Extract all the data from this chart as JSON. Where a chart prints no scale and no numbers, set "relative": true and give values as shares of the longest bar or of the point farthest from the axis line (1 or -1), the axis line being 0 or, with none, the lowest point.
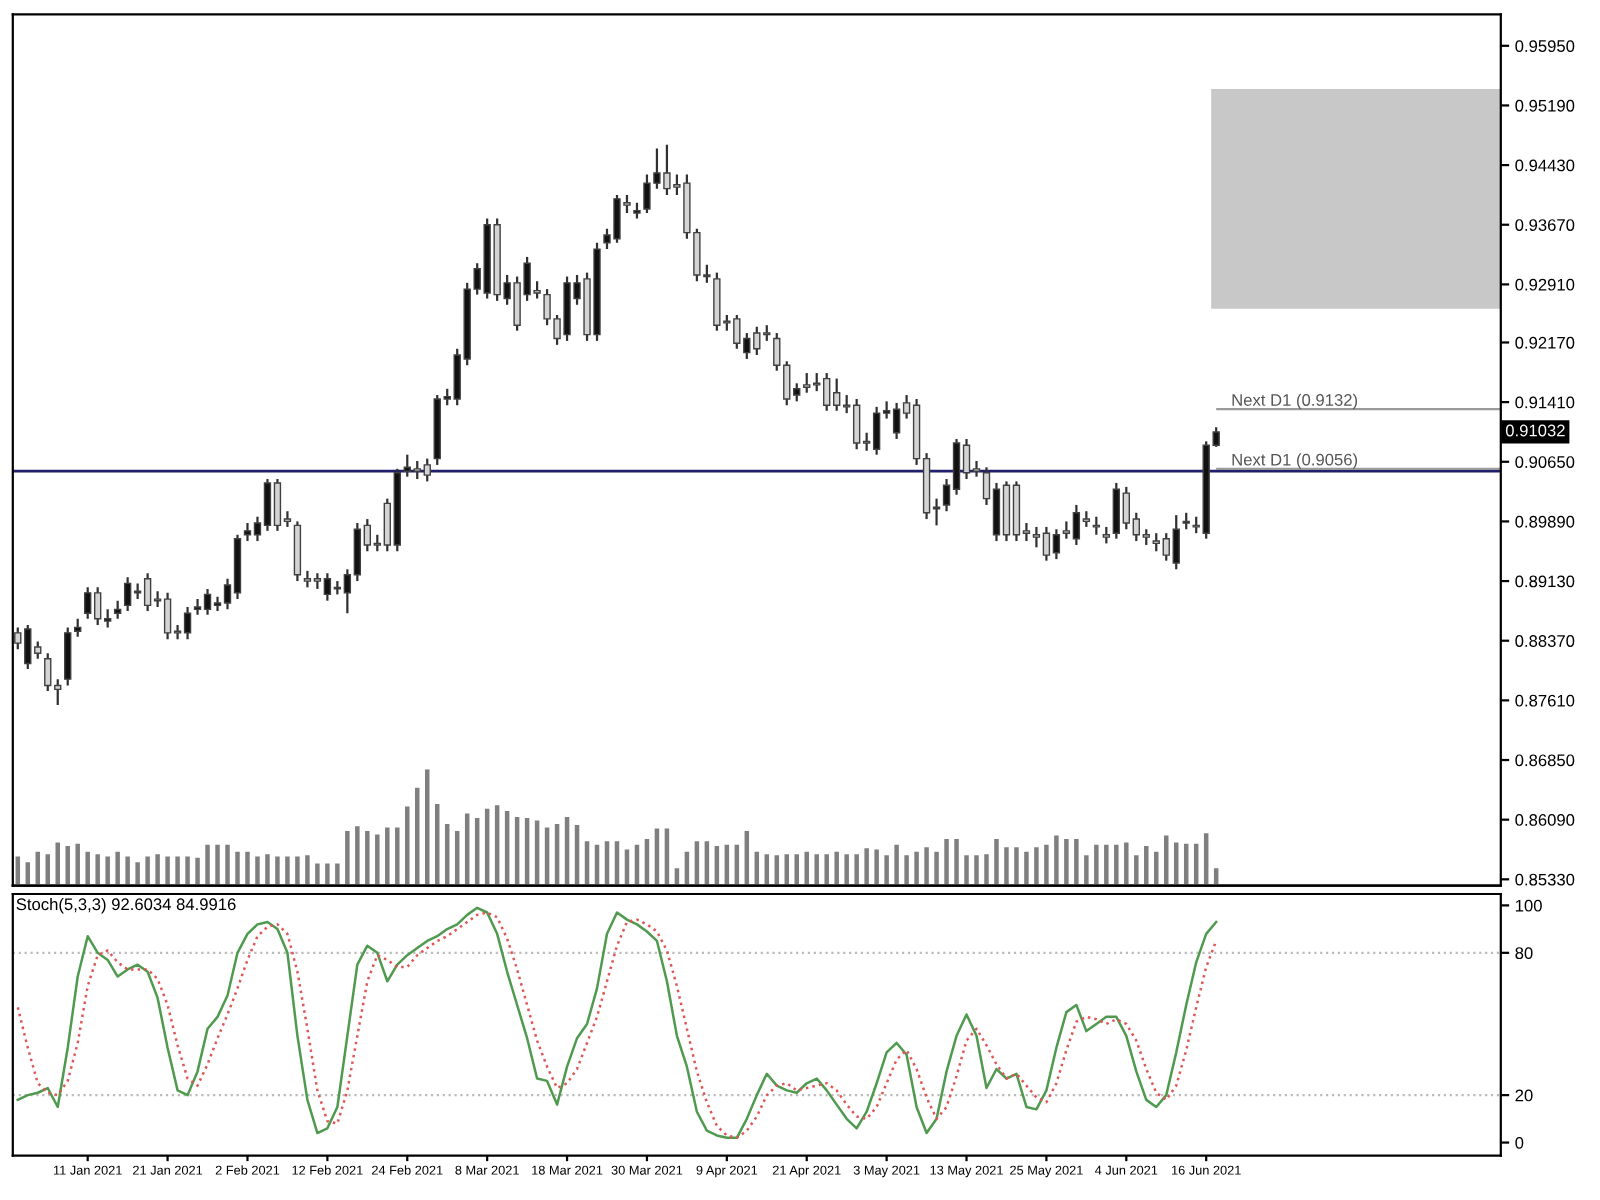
{
  "chart_data": [
    {
      "type": "candlestick",
      "categories": [
        null,
        null,
        null,
        null,
        null,
        null,
        null,
        null,
        null,
        null,
        null,
        null,
        null,
        null,
        null,
        null,
        null,
        null,
        null,
        null,
        null,
        null,
        null,
        null,
        null,
        null,
        null,
        null,
        null,
        null,
        null,
        null,
        null,
        null,
        null,
        null,
        null,
        null,
        null,
        null,
        null,
        null,
        null,
        null,
        null,
        null,
        null,
        null,
        null,
        null,
        null,
        null,
        null,
        null,
        null,
        null,
        null,
        null,
        null,
        null,
        null,
        null,
        null,
        null,
        null,
        null,
        null,
        null,
        null,
        null,
        null,
        null,
        null,
        null,
        null,
        null,
        null,
        null,
        null,
        null,
        null,
        null,
        null,
        null,
        null,
        null,
        null,
        null,
        null,
        null,
        null,
        null,
        null,
        null,
        null,
        null,
        null,
        null,
        null,
        null,
        null,
        null,
        null,
        null,
        null,
        null,
        null,
        null,
        null,
        null,
        null,
        null,
        null,
        null,
        null,
        null,
        null,
        null,
        null,
        null,
        null,
        null,
        null,
        null,
        null,
        null,
        null,
        null,
        null,
        null,
        null,
        null,
        null,
        null,
        null,
        null,
        null,
        null,
        null,
        null,
        null,
        null,
        null,
        null,
        null,
        null,
        null,
        null,
        null
      ],
      "ohlc": [
        [
          0.8847,
          0.8854,
          0.8826,
          0.8834
        ],
        [
          0.8808,
          0.8857,
          0.8801,
          0.8852
        ],
        [
          0.8829,
          0.8836,
          0.8814,
          0.8821
        ],
        [
          0.8814,
          0.8821,
          0.8773,
          0.878
        ],
        [
          0.878,
          0.8788,
          0.8755,
          0.8775
        ],
        [
          0.8788,
          0.8854,
          0.878,
          0.8847
        ],
        [
          0.8849,
          0.8865,
          0.8842,
          0.8854
        ],
        [
          0.8872,
          0.8905,
          0.8865,
          0.8898
        ],
        [
          0.8898,
          0.8905,
          0.8857,
          0.8865
        ],
        [
          0.8862,
          0.8877,
          0.8854,
          0.8865
        ],
        [
          0.8872,
          0.8888,
          0.8865,
          0.8877
        ],
        [
          0.8882,
          0.8918,
          0.8875,
          0.891
        ],
        [
          0.8898,
          0.891,
          0.889,
          0.89
        ],
        [
          0.8916,
          0.8923,
          0.8875,
          0.8882
        ],
        [
          0.889,
          0.89,
          0.888,
          0.8888
        ],
        [
          0.889,
          0.8898,
          0.8839,
          0.8847
        ],
        [
          0.8849,
          0.8857,
          0.8839,
          0.8847
        ],
        [
          0.8847,
          0.888,
          0.8839,
          0.8872
        ],
        [
          0.8877,
          0.889,
          0.887,
          0.888
        ],
        [
          0.8877,
          0.8903,
          0.887,
          0.8896
        ],
        [
          0.8882,
          0.8893,
          0.8875,
          0.8885
        ],
        [
          0.8885,
          0.8916,
          0.8877,
          0.8908
        ],
        [
          0.8898,
          0.8972,
          0.889,
          0.8967
        ],
        [
          0.8972,
          0.8987,
          0.8964,
          0.8977
        ],
        [
          0.8972,
          0.8995,
          0.8964,
          0.8987
        ],
        [
          0.8984,
          0.9043,
          0.8977,
          0.9038
        ],
        [
          0.9038,
          0.9043,
          0.8977,
          0.8984
        ],
        [
          0.8992,
          0.9002,
          0.8982,
          0.8989
        ],
        [
          0.8984,
          0.8989,
          0.8913,
          0.8921
        ],
        [
          0.8916,
          0.8926,
          0.8905,
          0.8913
        ],
        [
          0.8916,
          0.8923,
          0.8903,
          0.8913
        ],
        [
          0.8896,
          0.8923,
          0.8888,
          0.8916
        ],
        [
          0.8903,
          0.8913,
          0.8896,
          0.8905
        ],
        [
          0.8898,
          0.8928,
          0.8872,
          0.8921
        ],
        [
          0.8921,
          0.8987,
          0.8913,
          0.8979
        ],
        [
          0.8984,
          0.8992,
          0.8951,
          0.8959
        ],
        [
          0.8961,
          0.8972,
          0.8951,
          0.8959
        ],
        [
          0.9012,
          0.9018,
          0.8951,
          0.8959
        ],
        [
          0.8959,
          0.9056,
          0.8951,
          0.9051
        ],
        [
          0.9053,
          0.9074,
          0.9046,
          0.9058
        ],
        [
          0.9056,
          0.9066,
          0.9043,
          0.9053
        ],
        [
          0.9061,
          0.9069,
          0.904,
          0.9048
        ],
        [
          0.9069,
          0.915,
          0.9061,
          0.9145
        ],
        [
          0.9145,
          0.9158,
          0.9137,
          0.9148
        ],
        [
          0.9145,
          0.9209,
          0.9137,
          0.9201
        ],
        [
          0.9196,
          0.9293,
          0.9188,
          0.9285
        ],
        [
          0.9285,
          0.9318,
          0.9278,
          0.9311
        ],
        [
          0.928,
          0.9375,
          0.9273,
          0.9367
        ],
        [
          0.9367,
          0.9375,
          0.927,
          0.9278
        ],
        [
          0.9273,
          0.9303,
          0.9265,
          0.9293
        ],
        [
          0.9293,
          0.9301,
          0.9232,
          0.9239
        ],
        [
          0.9278,
          0.9326,
          0.927,
          0.9318
        ],
        [
          0.9283,
          0.9295,
          0.9273,
          0.928
        ],
        [
          0.9278,
          0.9285,
          0.9239,
          0.9247
        ],
        [
          0.9247,
          0.9252,
          0.9214,
          0.9222
        ],
        [
          0.9227,
          0.9301,
          0.9219,
          0.9293
        ],
        [
          0.9273,
          0.9303,
          0.9265,
          0.9293
        ],
        [
          0.9298,
          0.9306,
          0.9219,
          0.9227
        ],
        [
          0.9227,
          0.9344,
          0.9219,
          0.9336
        ],
        [
          0.9344,
          0.9362,
          0.9336,
          0.9354
        ],
        [
          0.9349,
          0.9405,
          0.9344,
          0.94
        ],
        [
          0.9395,
          0.9405,
          0.9382,
          0.9392
        ],
        [
          0.9382,
          0.9395,
          0.9375,
          0.9385
        ],
        [
          0.9387,
          0.9431,
          0.9382,
          0.942
        ],
        [
          0.942,
          0.9464,
          0.9413,
          0.9433
        ],
        [
          0.9433,
          0.9469,
          0.9405,
          0.9413
        ],
        [
          0.9418,
          0.9431,
          0.9405,
          0.9415
        ],
        [
          0.942,
          0.9431,
          0.9349,
          0.9357
        ],
        [
          0.9357,
          0.9362,
          0.9295,
          0.9303
        ],
        [
          0.9303,
          0.9316,
          0.9293,
          0.9301
        ],
        [
          0.9298,
          0.9306,
          0.9232,
          0.9239
        ],
        [
          0.9244,
          0.9252,
          0.9232,
          0.9242
        ],
        [
          0.9247,
          0.9252,
          0.9209,
          0.9216
        ],
        [
          0.9204,
          0.9229,
          0.9196,
          0.9222
        ],
        [
          0.9229,
          0.9237,
          0.9201,
          0.9209
        ],
        [
          0.9229,
          0.9239,
          0.9219,
          0.9227
        ],
        [
          0.9222,
          0.9229,
          0.9181,
          0.9188
        ],
        [
          0.9188,
          0.9193,
          0.9137,
          0.9145
        ],
        [
          0.915,
          0.9165,
          0.9142,
          0.9158
        ],
        [
          0.9163,
          0.9178,
          0.9153,
          0.916
        ],
        [
          0.9165,
          0.9178,
          0.9155,
          0.9163
        ],
        [
          0.9171,
          0.9178,
          0.913,
          0.9137
        ],
        [
          0.9153,
          0.9171,
          0.913,
          0.9137
        ],
        [
          0.9137,
          0.915,
          0.9127,
          0.9135
        ],
        [
          0.9137,
          0.9145,
          0.9081,
          0.9089
        ],
        [
          0.9091,
          0.9102,
          0.9079,
          0.9089
        ],
        [
          0.9081,
          0.9135,
          0.9074,
          0.9127
        ],
        [
          0.9127,
          0.9142,
          0.912,
          0.913
        ],
        [
          0.9102,
          0.914,
          0.9094,
          0.9132
        ],
        [
          0.914,
          0.915,
          0.912,
          0.9127
        ],
        [
          0.9137,
          0.9145,
          0.9061,
          0.9069
        ],
        [
          0.9069,
          0.9076,
          0.8992,
          0.9
        ],
        [
          0.9005,
          0.9018,
          0.8984,
          0.9007
        ],
        [
          0.901,
          0.9043,
          0.9002,
          0.9035
        ],
        [
          0.903,
          0.9094,
          0.9023,
          0.9089
        ],
        [
          0.9086,
          0.9094,
          0.9043,
          0.9051
        ],
        [
          0.9056,
          0.9066,
          0.9046,
          0.9053
        ],
        [
          0.9051,
          0.9058,
          0.901,
          0.9018
        ],
        [
          0.8972,
          0.9038,
          0.8964,
          0.903
        ],
        [
          0.9035,
          0.904,
          0.8964,
          0.8972
        ],
        [
          0.9035,
          0.904,
          0.8964,
          0.8972
        ],
        [
          0.8977,
          0.8987,
          0.8964,
          0.8974
        ],
        [
          0.8972,
          0.8982,
          0.8956,
          0.8969
        ],
        [
          0.8974,
          0.8982,
          0.8939,
          0.8946
        ],
        [
          0.8949,
          0.8979,
          0.8941,
          0.8972
        ],
        [
          0.8977,
          0.8989,
          0.8967,
          0.8974
        ],
        [
          0.8967,
          0.901,
          0.8959,
          0.9
        ],
        [
          0.8992,
          0.9002,
          0.8982,
          0.8989
        ],
        [
          0.8984,
          0.8995,
          0.8972,
          0.8982
        ],
        [
          0.8972,
          0.8982,
          0.8961,
          0.8969
        ],
        [
          0.8974,
          0.9038,
          0.8967,
          0.903
        ],
        [
          0.9025,
          0.9033,
          0.8979,
          0.8987
        ],
        [
          0.8992,
          0.9,
          0.8964,
          0.8972
        ],
        [
          0.8972,
          0.8979,
          0.8959,
          0.8969
        ],
        [
          0.8964,
          0.8974,
          0.8951,
          0.8961
        ],
        [
          0.8967,
          0.8974,
          0.8939,
          0.8946
        ],
        [
          0.8936,
          0.8997,
          0.8928,
          0.8979
        ],
        [
          0.8987,
          0.9,
          0.8979,
          0.8989
        ],
        [
          0.8984,
          0.8995,
          0.8974,
          0.8982
        ],
        [
          0.8974,
          0.9091,
          0.8967,
          0.9086
        ],
        [
          0.9086,
          0.9109,
          0.9084,
          0.9103
        ],
        null,
        null,
        null,
        null,
        null,
        null,
        null,
        null,
        null,
        null,
        null,
        null,
        null,
        null,
        null,
        null,
        null,
        null,
        null,
        null,
        null,
        null,
        null,
        null,
        null,
        null,
        null,
        null
      ],
      "ylim": [
        0.8525,
        0.9635
      ],
      "yticks": [
        {
          "value": 0.9595,
          "label": "0.95950"
        },
        {
          "value": 0.9519,
          "label": "0.95190"
        },
        {
          "value": 0.9443,
          "label": "0.94430"
        },
        {
          "value": 0.9367,
          "label": "0.93670"
        },
        {
          "value": 0.9291,
          "label": "0.92910"
        },
        {
          "value": 0.9217,
          "label": "0.92170"
        },
        {
          "value": 0.9141,
          "label": "0.91410"
        },
        {
          "value": 0.9065,
          "label": "0.90650"
        },
        {
          "value": 0.8989,
          "label": "0.89890"
        },
        {
          "value": 0.8913,
          "label": "0.89130"
        },
        {
          "value": 0.8837,
          "label": "0.88370"
        },
        {
          "value": 0.8761,
          "label": "0.87610"
        },
        {
          "value": 0.8685,
          "label": "0.86850"
        },
        {
          "value": 0.8609,
          "label": "0.86090"
        },
        {
          "value": 0.8533,
          "label": "0.85330"
        }
      ],
      "tick_labels": "y",
      "ref_lines": [
        {
          "axis": "y",
          "value": 0.9053,
          "color": "#1f1f6b"
        },
        {
          "axis": "y",
          "value": 0.9132,
          "label": "Next D1 (0.9132)",
          "color": "#9a9a9a"
        },
        {
          "axis": "y",
          "value": 0.9056,
          "label": "Next D1 (0.9056)",
          "color": "#9a9a9a"
        }
      ],
      "bands": [
        {
          "axis": "y",
          "from": 0.926,
          "to": 0.954,
          "color": "#c8c8c8"
        }
      ],
      "annotations": [
        "0.91032"
      ]
    },
    {
      "type": "bar",
      "relative": true,
      "color": "#7f7f7f",
      "tick_labels": false,
      "categories": [
        null,
        null,
        null,
        null,
        null,
        null,
        null,
        null,
        null,
        null,
        null,
        null,
        null,
        null,
        null,
        null,
        null,
        null,
        null,
        null,
        null,
        null,
        null,
        null,
        null,
        null,
        null,
        null,
        null,
        null,
        null,
        null,
        null,
        null,
        null,
        null,
        null,
        null,
        null,
        null,
        null,
        null,
        null,
        null,
        null,
        null,
        null,
        null,
        null,
        null,
        null,
        null,
        null,
        null,
        null,
        null,
        null,
        null,
        null,
        null,
        null,
        null,
        null,
        null,
        null,
        null,
        null,
        null,
        null,
        null,
        null,
        null,
        null,
        null,
        null,
        null,
        null,
        null,
        null,
        null,
        null,
        null,
        null,
        null,
        null,
        null,
        null,
        null,
        null,
        null,
        null,
        null,
        null,
        null,
        null,
        null,
        null,
        null,
        null,
        null,
        null,
        null,
        null,
        null,
        null,
        null,
        null,
        null,
        null,
        null,
        null,
        null,
        null,
        null,
        null,
        null,
        null,
        null,
        null,
        null,
        null,
        null,
        null,
        null,
        null,
        null,
        null,
        null,
        null,
        null,
        null,
        null,
        null,
        null,
        null,
        null,
        null,
        null,
        null,
        null,
        null,
        null,
        null,
        null,
        null,
        null,
        null,
        null,
        null
      ],
      "values": [
        0.25,
        0.2,
        0.29,
        0.27,
        0.37,
        0.34,
        0.36,
        0.29,
        0.27,
        0.25,
        0.29,
        0.25,
        0.2,
        0.25,
        0.27,
        0.25,
        0.25,
        0.25,
        0.24,
        0.35,
        0.35,
        0.35,
        0.29,
        0.29,
        0.25,
        0.27,
        0.25,
        0.25,
        0.25,
        0.26,
        0.19,
        0.19,
        0.19,
        0.47,
        0.51,
        0.47,
        0.44,
        0.5,
        0.5,
        0.68,
        0.84,
        1,
        0.7,
        0.53,
        0.47,
        0.62,
        0.58,
        0.66,
        0.69,
        0.64,
        0.59,
        0.58,
        0.56,
        0.5,
        0.53,
        0.59,
        0.52,
        0.38,
        0.35,
        0.38,
        0.38,
        0.31,
        0.35,
        0.4,
        0.49,
        0.49,
        0.15,
        0.29,
        0.38,
        0.38,
        0.34,
        0.35,
        0.35,
        0.47,
        0.29,
        0.27,
        0.26,
        0.27,
        0.27,
        0.29,
        0.27,
        0.27,
        0.29,
        0.27,
        0.27,
        0.32,
        0.31,
        0.26,
        0.35,
        0.26,
        0.29,
        0.33,
        0.29,
        0.4,
        0.4,
        0.26,
        0.26,
        0.27,
        0.4,
        0.33,
        0.33,
        0.29,
        0.33,
        0.35,
        0.43,
        0.4,
        0.4,
        0.26,
        0.35,
        0.35,
        0.35,
        0.37,
        0.26,
        0.34,
        0.29,
        0.43,
        0.37,
        0.36,
        0.36,
        0.45,
        0.15,
        null,
        null,
        null,
        null,
        null,
        null,
        null,
        null,
        null,
        null,
        null,
        null,
        null,
        null,
        null,
        null,
        null,
        null,
        null,
        null,
        null,
        null,
        null,
        null,
        null,
        null,
        null,
        null
      ]
    },
    {
      "type": "line",
      "title": "Stoch(5,3,3) 92.6034 84.9916",
      "categories": [
        null,
        null,
        null,
        null,
        null,
        null,
        null,
        "11 Jan 2021",
        null,
        null,
        null,
        null,
        null,
        null,
        null,
        "21 Jan 2021",
        null,
        null,
        null,
        null,
        null,
        null,
        null,
        "2 Feb 2021",
        null,
        null,
        null,
        null,
        null,
        null,
        null,
        "12 Feb 2021",
        null,
        null,
        null,
        null,
        null,
        null,
        null,
        "24 Feb 2021",
        null,
        null,
        null,
        null,
        null,
        null,
        null,
        "8 Mar 2021",
        null,
        null,
        null,
        null,
        null,
        null,
        null,
        "18 Mar 2021",
        null,
        null,
        null,
        null,
        null,
        null,
        null,
        "30 Mar 2021",
        null,
        null,
        null,
        null,
        null,
        null,
        null,
        "9 Apr 2021",
        null,
        null,
        null,
        null,
        null,
        null,
        null,
        "21 Apr 2021",
        null,
        null,
        null,
        null,
        null,
        null,
        null,
        "3 May 2021",
        null,
        null,
        null,
        null,
        null,
        null,
        null,
        "13 May 2021",
        null,
        null,
        null,
        null,
        null,
        null,
        null,
        "25 May 2021",
        null,
        null,
        null,
        null,
        null,
        null,
        null,
        "4 Jun 2021",
        null,
        null,
        null,
        null,
        null,
        null,
        null,
        "16 Jun 2021",
        null,
        null,
        null,
        null,
        null,
        null,
        null,
        null,
        null,
        null,
        null,
        null,
        null,
        null,
        null,
        null,
        null,
        null,
        null,
        null,
        null,
        null,
        null,
        null,
        null,
        null,
        null,
        null,
        null
      ],
      "series": [
        {
          "color": "#4f9a4f",
          "line_style": "solid",
          "values": [
            18,
            20,
            21,
            23,
            15,
            40,
            70,
            87,
            80,
            77,
            70,
            73,
            75,
            72,
            61,
            40,
            22,
            20,
            30,
            48,
            53,
            62,
            80,
            88,
            92,
            93,
            90,
            80,
            45,
            18,
            4,
            6,
            15,
            45,
            75,
            83,
            80,
            68,
            75,
            79,
            82,
            85,
            87,
            90,
            92,
            96,
            99,
            97,
            88,
            72,
            58,
            44,
            27,
            26,
            16,
            32,
            44,
            50,
            65,
            88,
            97,
            94,
            92,
            89,
            85,
            68,
            45,
            32,
            13,
            5,
            3,
            2,
            2,
            10,
            20,
            29,
            24,
            22,
            21,
            25,
            27,
            22,
            16,
            10,
            6,
            13,
            25,
            38,
            42,
            37,
            15,
            4,
            10,
            30,
            45,
            54,
            45,
            23,
            31,
            27,
            29,
            15,
            14,
            22,
            40,
            55,
            58,
            47,
            50,
            53,
            53,
            45,
            30,
            18,
            15,
            20,
            38,
            58,
            76,
            88,
            93,
            null,
            null,
            null,
            null,
            null,
            null,
            null,
            null,
            null,
            null,
            null,
            null,
            null,
            null,
            null,
            null,
            null,
            null,
            null,
            null,
            null,
            null,
            null,
            null,
            null,
            null,
            null,
            null
          ]
        },
        {
          "color": "#e05555",
          "line_style": "dotted",
          "values": [
            57,
            40,
            25,
            21,
            20,
            26,
            42,
            66,
            79,
            81,
            76,
            73,
            73,
            73,
            69,
            58,
            41,
            27,
            24,
            33,
            44,
            54,
            65,
            77,
            87,
            91,
            92,
            88,
            72,
            48,
            22,
            9,
            8,
            22,
            45,
            68,
            79,
            77,
            74,
            74,
            79,
            82,
            85,
            87,
            90,
            93,
            96,
            97,
            95,
            86,
            73,
            58,
            43,
            32,
            23,
            25,
            31,
            42,
            53,
            68,
            83,
            93,
            94,
            92,
            89,
            81,
            66,
            48,
            30,
            17,
            7,
            3,
            2,
            5,
            11,
            20,
            24,
            25,
            22,
            23,
            24,
            25,
            22,
            16,
            11,
            10,
            15,
            25,
            35,
            39,
            31,
            19,
            10,
            15,
            28,
            43,
            48,
            41,
            33,
            27,
            29,
            24,
            19,
            17,
            25,
            39,
            51,
            53,
            52,
            50,
            52,
            50,
            43,
            31,
            21,
            18,
            24,
            39,
            57,
            74,
            85,
            null,
            null,
            null,
            null,
            null,
            null,
            null,
            null,
            null,
            null,
            null,
            null,
            null,
            null,
            null,
            null,
            null,
            null,
            null,
            null,
            null,
            null,
            null,
            null,
            null,
            null,
            null,
            null
          ]
        }
      ],
      "ylim": [
        -5.5,
        104.8
      ],
      "yticks": [
        0,
        20,
        80,
        100
      ],
      "ref_lines": [
        {
          "axis": "y",
          "value": 20,
          "color": "#bbbbbb",
          "line_style": "dotted"
        },
        {
          "axis": "y",
          "value": 80,
          "color": "#bbbbbb",
          "line_style": "dotted"
        }
      ]
    }
  ]
}
